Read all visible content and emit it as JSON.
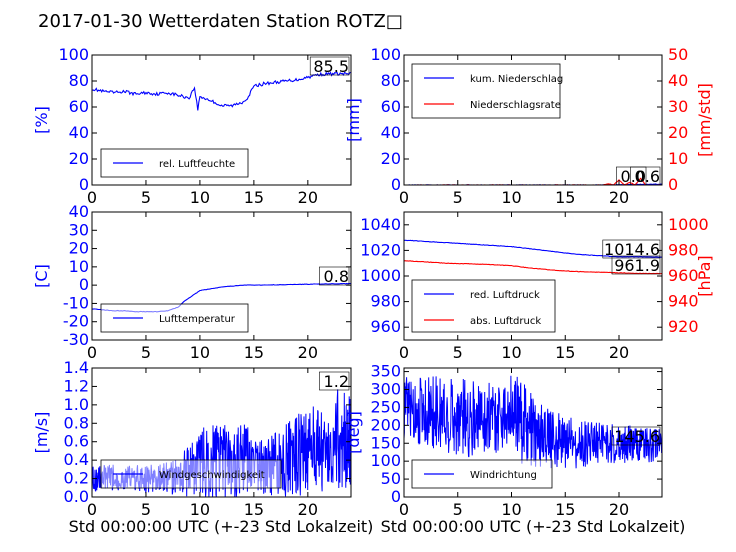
{
  "title": "2017-01-30 Wetterdaten Station ROTZ□",
  "xlabel": "Std 00:00:00 UTC (+-23 Std Lokalzeit)",
  "colors": {
    "primary": "#0000ff",
    "secondary": "#ff0000",
    "axis": "#000000"
  },
  "chart_data": [
    {
      "type": "line",
      "id": "humidity",
      "xlim": [
        0,
        24
      ],
      "ylim": [
        0,
        100
      ],
      "xticks": [
        0,
        5,
        10,
        15,
        20
      ],
      "yticks": [
        0,
        20,
        40,
        60,
        80,
        100
      ],
      "ylabel": "[%]",
      "legend": [
        "rel. Luftfeuchte"
      ],
      "legend_position": "lower-left",
      "annotation": "85.5",
      "series": [
        {
          "name": "rel. Luftfeuchte",
          "color": "#0000ff",
          "x": [
            0,
            1,
            2,
            3,
            4,
            5,
            6,
            7,
            8,
            9,
            9.5,
            9.8,
            10,
            11,
            12,
            13,
            14,
            14.5,
            15,
            16,
            17,
            18,
            19,
            20,
            21,
            22,
            23,
            24
          ],
          "y": [
            74,
            72,
            71,
            72,
            70,
            71,
            70,
            71,
            69,
            67,
            75,
            58,
            68,
            65,
            61,
            61,
            64,
            68,
            76,
            78,
            79,
            80,
            81,
            83,
            85,
            85.5,
            85.5,
            85.5
          ]
        }
      ]
    },
    {
      "type": "line",
      "id": "precip",
      "xlim": [
        0,
        24
      ],
      "ylim": [
        0,
        100
      ],
      "ylim_right": [
        0,
        50
      ],
      "xticks": [
        0,
        5,
        10,
        15,
        20
      ],
      "yticks": [
        0,
        20,
        40,
        60,
        80,
        100
      ],
      "yticks_right": [
        0,
        10,
        20,
        30,
        40,
        50
      ],
      "ylabel": "[mm]",
      "ylabel_right": "[mm/std]",
      "legend": [
        "kum. Niederschlag",
        "Niederschlagsrate"
      ],
      "legend_position": "upper-left",
      "annotations": [
        "0.0",
        "0.6"
      ],
      "series": [
        {
          "name": "kum. Niederschlag",
          "color": "#0000ff",
          "axis": "left",
          "x": [
            0,
            19,
            20,
            21,
            22,
            23,
            24
          ],
          "y": [
            0,
            0,
            0.2,
            0.4,
            0.5,
            0.6,
            0.6
          ]
        },
        {
          "name": "Niederschlagsrate",
          "color": "#ff0000",
          "axis": "right",
          "x": [
            0,
            18.5,
            19,
            19.5,
            20,
            20.5,
            21,
            21.5,
            22,
            22.5,
            23,
            24
          ],
          "y": [
            0,
            0,
            0.5,
            0,
            2,
            0,
            1,
            0,
            2.5,
            0,
            0,
            0
          ]
        }
      ]
    },
    {
      "type": "line",
      "id": "temp",
      "xlim": [
        0,
        24
      ],
      "ylim": [
        -30,
        40
      ],
      "xticks": [
        0,
        5,
        10,
        15,
        20
      ],
      "yticks": [
        -30,
        -20,
        -10,
        0,
        10,
        20,
        30,
        40
      ],
      "ylabel": "[C]",
      "legend": [
        "Lufttemperatur"
      ],
      "legend_position": "lower-left",
      "annotation": "0.8",
      "series": [
        {
          "name": "Lufttemperatur",
          "color": "#0000ff",
          "x": [
            0,
            1,
            2,
            3,
            4,
            5,
            6,
            7,
            8,
            8.5,
            9,
            9.5,
            10,
            11,
            12,
            13,
            14,
            15,
            16,
            17,
            18,
            19,
            20,
            21,
            22,
            23,
            24
          ],
          "y": [
            -13,
            -13.5,
            -14,
            -14,
            -14.5,
            -14.5,
            -14.5,
            -14,
            -12,
            -9,
            -7,
            -5,
            -3,
            -2,
            -1,
            -0.5,
            0,
            0,
            0,
            0.2,
            0.3,
            0.4,
            0.5,
            0.6,
            0.7,
            0.8,
            0.8
          ]
        }
      ]
    },
    {
      "type": "line",
      "id": "pressure",
      "xlim": [
        0,
        24
      ],
      "ylim": [
        950,
        1050
      ],
      "ylim_right": [
        910,
        1010
      ],
      "xticks": [
        0,
        5,
        10,
        15,
        20
      ],
      "yticks": [
        960,
        980,
        1000,
        1020,
        1040
      ],
      "yticks_right": [
        920,
        940,
        960,
        980,
        1000
      ],
      "ylabel_right": "[hPa]",
      "legend": [
        "red. Luftdruck",
        "abs. Luftdruck"
      ],
      "legend_position": "lower-left",
      "annotations": [
        "1014.6",
        "961.9"
      ],
      "series": [
        {
          "name": "red. Luftdruck",
          "color": "#0000ff",
          "axis": "left",
          "x": [
            0,
            2,
            4,
            6,
            8,
            10,
            12,
            14,
            16,
            18,
            20,
            22,
            24
          ],
          "y": [
            1028,
            1027,
            1026,
            1025,
            1024,
            1023,
            1021,
            1019,
            1017,
            1016,
            1015,
            1015,
            1014.6
          ]
        },
        {
          "name": "abs. Luftdruck",
          "color": "#ff0000",
          "axis": "right",
          "x": [
            0,
            2,
            4,
            6,
            8,
            10,
            12,
            14,
            16,
            18,
            20,
            22,
            24
          ],
          "y": [
            972,
            971,
            970,
            969.5,
            969,
            968,
            966,
            964.5,
            963.5,
            963,
            962.5,
            962,
            961.9
          ]
        }
      ]
    },
    {
      "type": "line",
      "id": "windspeed",
      "xlim": [
        0,
        24
      ],
      "ylim": [
        0,
        1.4
      ],
      "xticks": [
        0,
        5,
        10,
        15,
        20
      ],
      "yticks": [
        0.0,
        0.2,
        0.4,
        0.6,
        0.8,
        1.0,
        1.2,
        1.4
      ],
      "ylabel": "[m/s]",
      "legend": [
        "Windgeschwindigkeit"
      ],
      "legend_position": "lower-left",
      "annotation": "1.2",
      "series": [
        {
          "name": "Windgeschwindigkeit",
          "color": "#0000ff",
          "noisy": true,
          "x": [
            0,
            2,
            4,
            6,
            8,
            9,
            10,
            11,
            12,
            13,
            14,
            15,
            16,
            17,
            18,
            19,
            20,
            21,
            22,
            23,
            24
          ],
          "base": [
            0.2,
            0.2,
            0.2,
            0.2,
            0.22,
            0.3,
            0.35,
            0.4,
            0.4,
            0.35,
            0.4,
            0.35,
            0.3,
            0.35,
            0.4,
            0.45,
            0.5,
            0.55,
            0.6,
            0.65,
            0.6
          ],
          "amp": [
            0.15,
            0.15,
            0.15,
            0.15,
            0.2,
            0.3,
            0.4,
            0.45,
            0.4,
            0.4,
            0.4,
            0.35,
            0.3,
            0.35,
            0.4,
            0.45,
            0.45,
            0.5,
            0.55,
            0.55,
            0.5
          ]
        }
      ]
    },
    {
      "type": "line",
      "id": "winddir",
      "xlim": [
        0,
        24
      ],
      "ylim": [
        0,
        360
      ],
      "xticks": [
        0,
        5,
        10,
        15,
        20
      ],
      "yticks": [
        0,
        50,
        100,
        150,
        200,
        250,
        300,
        350
      ],
      "ylabel": "[deg]",
      "legend": [
        "Windrichtung"
      ],
      "legend_position": "lower-left",
      "annotation": "145.6",
      "series": [
        {
          "name": "Windrichtung",
          "color": "#0000ff",
          "noisy": true,
          "x": [
            0,
            2,
            4,
            6,
            8,
            9,
            10,
            11,
            12,
            13,
            14,
            16,
            18,
            20,
            22,
            24
          ],
          "base": [
            250,
            240,
            230,
            220,
            230,
            220,
            260,
            210,
            180,
            170,
            160,
            150,
            150,
            150,
            145,
            145
          ],
          "amp": [
            90,
            100,
            110,
            110,
            100,
            110,
            90,
            120,
            100,
            90,
            80,
            70,
            60,
            55,
            50,
            50
          ]
        }
      ]
    }
  ]
}
